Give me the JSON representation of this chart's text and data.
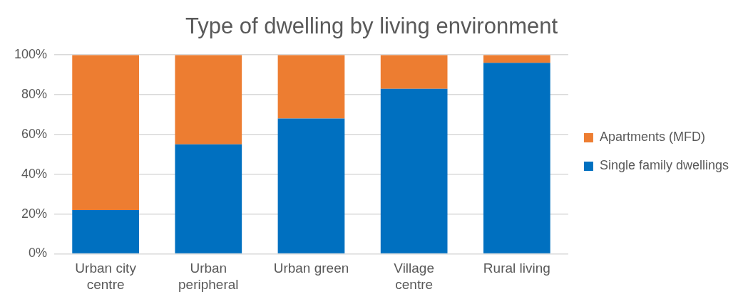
{
  "chart_data": {
    "type": "bar",
    "title": "Type of dwelling by living environment",
    "categories": [
      "Urban city centre",
      "Urban peripheral",
      "Urban green",
      "Village centre",
      "Rural living"
    ],
    "series": [
      {
        "name": "Single family dwellings",
        "color": "#0070c0",
        "values": [
          22,
          55,
          68,
          83,
          96
        ]
      },
      {
        "name": "Apartments (MFD)",
        "color": "#ed7d31",
        "values": [
          78,
          45,
          32,
          17,
          4
        ]
      }
    ],
    "stacked": true,
    "ylim": [
      0,
      100
    ],
    "yticks": [
      {
        "value": 0,
        "label": "0%"
      },
      {
        "value": 20,
        "label": "20%"
      },
      {
        "value": 40,
        "label": "40%"
      },
      {
        "value": 60,
        "label": "60%"
      },
      {
        "value": 80,
        "label": "80%"
      },
      {
        "value": 100,
        "label": "100%"
      }
    ],
    "grid": "y",
    "legend": "right"
  }
}
